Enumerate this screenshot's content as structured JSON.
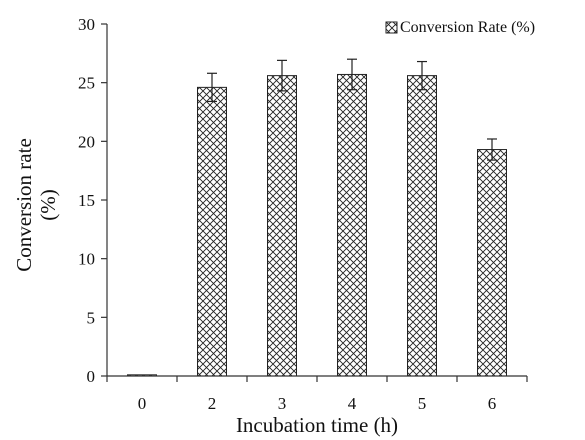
{
  "chart_data": {
    "type": "bar",
    "categories": [
      "0",
      "2",
      "3",
      "4",
      "5",
      "6"
    ],
    "series": [
      {
        "name": "Conversion Rate (%)",
        "values": [
          0.1,
          24.6,
          25.6,
          25.7,
          25.6,
          19.3
        ],
        "errors": [
          0,
          1.2,
          1.3,
          1.3,
          1.2,
          0.9
        ]
      }
    ],
    "title": "",
    "xlabel": "Incubation time (h)",
    "ylabel_lines": [
      "Conversion rate",
      "(%)"
    ],
    "ylim": [
      0,
      30
    ],
    "yticks": [
      "0",
      "5",
      "10",
      "15",
      "20",
      "25",
      "30"
    ],
    "ytick_values": [
      0,
      5,
      10,
      15,
      20,
      25,
      30
    ],
    "grid": false,
    "legend": "top-right",
    "bar_fill": "crosshatch",
    "colors": {
      "ink": "#111111",
      "background": "#ffffff"
    }
  }
}
